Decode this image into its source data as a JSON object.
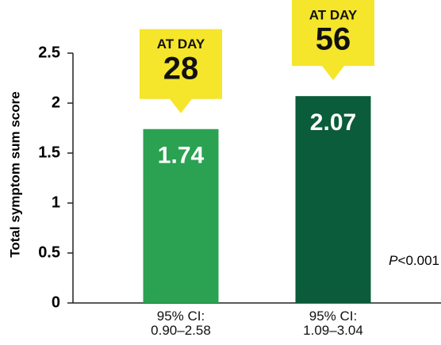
{
  "chart_data": {
    "type": "bar",
    "y_label": "Total symptom sum score",
    "categories": [
      "95% CI:\n0.90–2.58",
      "95% CI:\n1.09–3.04"
    ],
    "values": [
      1.74,
      2.07
    ],
    "colors": [
      "#2aa252",
      "#0a5c3a"
    ],
    "annotations": [
      {
        "line1": "AT DAY",
        "line2": "28"
      },
      {
        "line1": "AT DAY",
        "line2": "56"
      }
    ],
    "p_value": {
      "symbol": "P",
      "text": "<0.001"
    },
    "ylim": [
      0,
      2.5
    ],
    "yticks": [
      0,
      0.5,
      1,
      1.5,
      2,
      2.5
    ]
  }
}
